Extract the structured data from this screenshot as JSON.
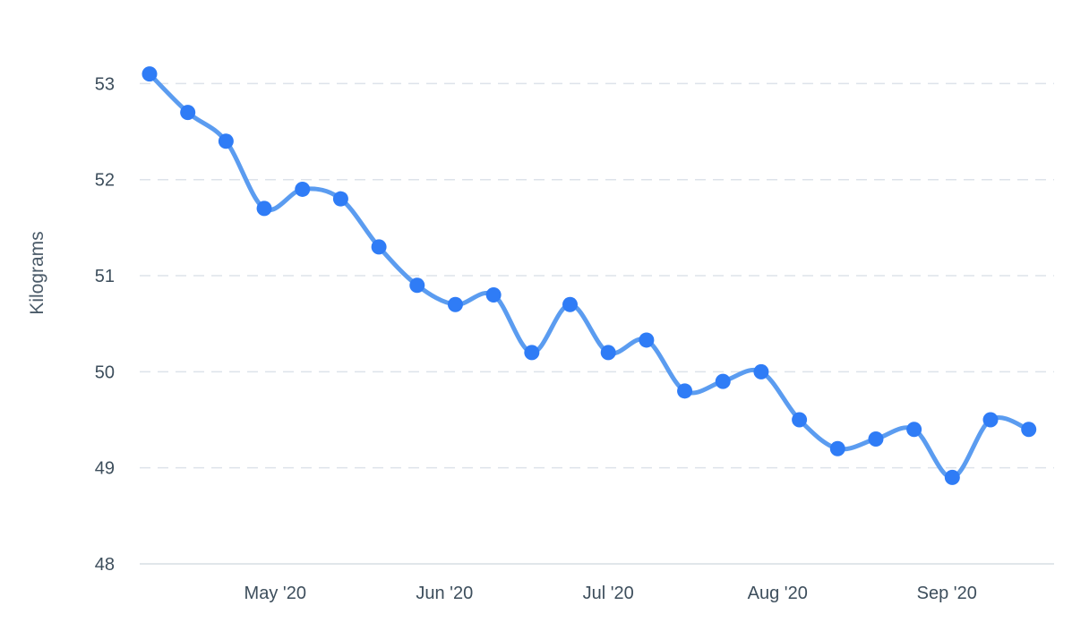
{
  "chart_data": {
    "type": "line",
    "title": "",
    "xlabel": "",
    "ylabel": "Kilograms",
    "ylim": [
      48,
      53.3
    ],
    "yticks": [
      48,
      49,
      50,
      51,
      52,
      53
    ],
    "xlim": [
      "2020-04-08",
      "2020-09-19"
    ],
    "xticks": [
      {
        "date": "2020-05-01",
        "label": "May '20"
      },
      {
        "date": "2020-06-01",
        "label": "Jun '20"
      },
      {
        "date": "2020-07-01",
        "label": "Jul '20"
      },
      {
        "date": "2020-08-01",
        "label": "Aug '20"
      },
      {
        "date": "2020-09-01",
        "label": "Sep '20"
      }
    ],
    "grid": true,
    "line_color": "#5b9cf0",
    "point_color": "#2f7cf6",
    "series": [
      {
        "points": [
          {
            "x": "2020-04-08",
            "y": 53.1
          },
          {
            "x": "2020-04-15",
            "y": 52.7
          },
          {
            "x": "2020-04-22",
            "y": 52.4
          },
          {
            "x": "2020-04-29",
            "y": 51.7
          },
          {
            "x": "2020-05-06",
            "y": 51.9
          },
          {
            "x": "2020-05-13",
            "y": 51.8
          },
          {
            "x": "2020-05-20",
            "y": 51.3
          },
          {
            "x": "2020-05-27",
            "y": 50.9
          },
          {
            "x": "2020-06-03",
            "y": 50.7
          },
          {
            "x": "2020-06-10",
            "y": 50.8
          },
          {
            "x": "2020-06-17",
            "y": 50.2
          },
          {
            "x": "2020-06-24",
            "y": 50.7
          },
          {
            "x": "2020-07-01",
            "y": 50.2
          },
          {
            "x": "2020-07-08",
            "y": 50.33
          },
          {
            "x": "2020-07-15",
            "y": 49.8
          },
          {
            "x": "2020-07-22",
            "y": 49.9
          },
          {
            "x": "2020-07-29",
            "y": 50.0
          },
          {
            "x": "2020-08-05",
            "y": 49.5
          },
          {
            "x": "2020-08-12",
            "y": 49.2
          },
          {
            "x": "2020-08-19",
            "y": 49.3
          },
          {
            "x": "2020-08-26",
            "y": 49.4
          },
          {
            "x": "2020-09-02",
            "y": 48.9
          },
          {
            "x": "2020-09-09",
            "y": 49.5
          },
          {
            "x": "2020-09-16",
            "y": 49.4
          }
        ]
      }
    ]
  }
}
